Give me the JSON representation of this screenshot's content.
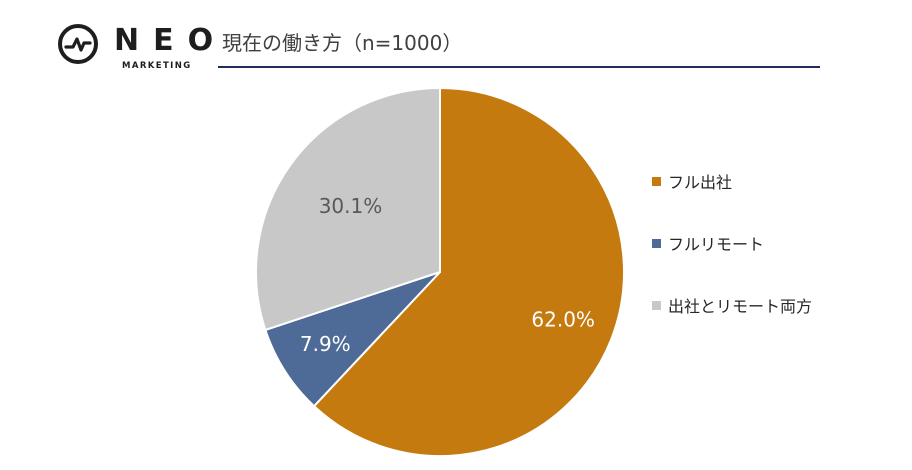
{
  "header": {
    "logo_word": "NEO",
    "logo_sub": "MARKETING",
    "title": "現在の働き方（n=1000）"
  },
  "chart_data": {
    "type": "pie",
    "title": "現在の働き方（n=1000）",
    "categories": [
      "フル出社",
      "フルリモート",
      "出社とリモート両方"
    ],
    "values": [
      62.0,
      7.9,
      30.1
    ],
    "labels": [
      "62.0%",
      "7.9%",
      "30.1%"
    ],
    "colors": [
      "#c47a0f",
      "#4e6a96",
      "#c8c8c8"
    ],
    "label_colors": [
      "#ffffff",
      "#ffffff",
      "#595959"
    ],
    "start_angle_deg": 0,
    "direction": "clockwise",
    "legend_position": "right"
  }
}
